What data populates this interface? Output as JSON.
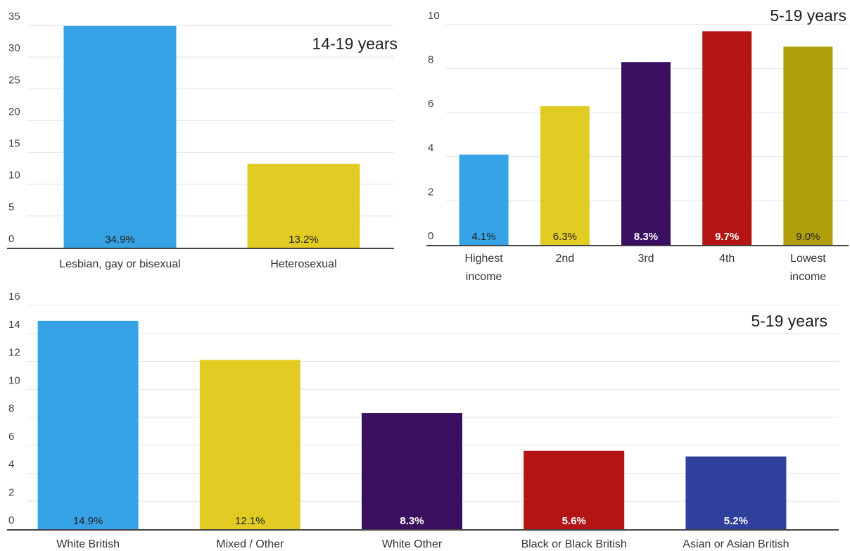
{
  "chart_data": [
    {
      "type": "bar",
      "title": "14-19 years",
      "categories": [
        [
          "Lesbian, gay or bisexual"
        ],
        [
          "Heterosexual"
        ]
      ],
      "values": [
        34.9,
        13.2
      ],
      "labels": [
        "34.9%",
        "13.2%"
      ],
      "colors": [
        "#36a3e6",
        "#e2cb23"
      ],
      "yticks": [
        0,
        5,
        10,
        15,
        20,
        25,
        30,
        35
      ],
      "ylim": [
        0,
        35
      ],
      "grid": true
    },
    {
      "type": "bar",
      "title": "5-19 years",
      "categories": [
        [
          "Highest",
          "income"
        ],
        [
          "2nd"
        ],
        [
          "3rd"
        ],
        [
          "4th"
        ],
        [
          "Lowest",
          "income"
        ]
      ],
      "values": [
        4.1,
        6.3,
        8.3,
        9.7,
        9.0
      ],
      "labels": [
        "4.1%",
        "6.3%",
        "8.3%",
        "9.7%",
        "9.0%"
      ],
      "colors": [
        "#36a3e6",
        "#e2cb23",
        "#3b0f60",
        "#b31515",
        "#b19e0b"
      ],
      "yticks": [
        0,
        2,
        4,
        6,
        8,
        10
      ],
      "ylim": [
        0,
        10
      ],
      "grid": true
    },
    {
      "type": "bar",
      "title": "5-19 years",
      "categories": [
        [
          "White British"
        ],
        [
          "Mixed / Other"
        ],
        [
          "White Other"
        ],
        [
          "Black or Black British"
        ],
        [
          "Asian or Asian British"
        ]
      ],
      "values": [
        14.9,
        12.1,
        8.3,
        5.6,
        5.2
      ],
      "labels": [
        "14.9%",
        "12.1%",
        "8.3%",
        "5.6%",
        "5.2%"
      ],
      "colors": [
        "#36a3e6",
        "#e2cb23",
        "#3b0f60",
        "#b31515",
        "#2e3f9c"
      ],
      "yticks": [
        0,
        2,
        4,
        6,
        8,
        10,
        12,
        14,
        16
      ],
      "ylim": [
        0,
        16
      ],
      "grid": true
    }
  ]
}
